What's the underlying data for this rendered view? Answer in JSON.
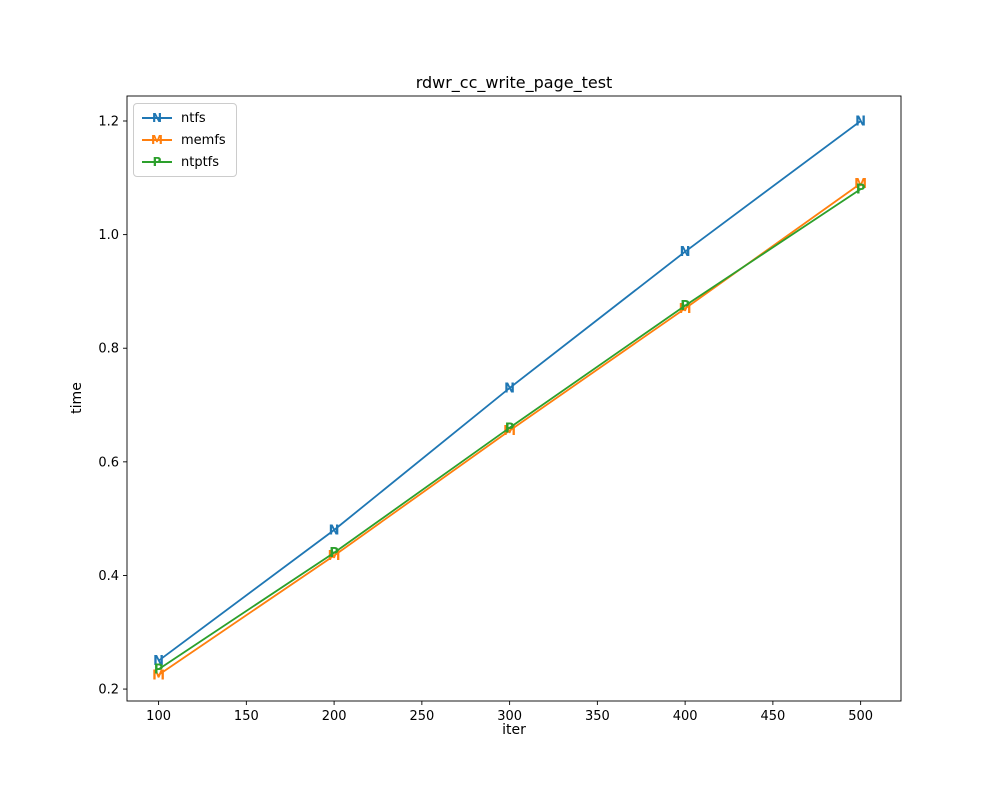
{
  "chart_data": {
    "type": "line",
    "title": "rdwr_cc_write_page_test",
    "xlabel": "iter",
    "ylabel": "time",
    "x": [
      100,
      200,
      300,
      400,
      500
    ],
    "series": [
      {
        "name": "ntfs",
        "marker": "N",
        "color": "#1f77b4",
        "values": [
          0.25,
          0.48,
          0.73,
          0.97,
          1.2
        ]
      },
      {
        "name": "memfs",
        "marker": "M",
        "color": "#ff7f0e",
        "values": [
          0.225,
          0.435,
          0.655,
          0.87,
          1.09
        ]
      },
      {
        "name": "ntptfs",
        "marker": "P",
        "color": "#2ca02c",
        "values": [
          0.235,
          0.44,
          0.66,
          0.875,
          1.08
        ]
      }
    ],
    "xtick_values": [
      100,
      150,
      200,
      250,
      300,
      350,
      400,
      450,
      500
    ],
    "xtick_labels": [
      "100",
      "150",
      "200",
      "250",
      "300",
      "350",
      "400",
      "450",
      "500"
    ],
    "ytick_values": [
      0.2,
      0.4,
      0.6,
      0.8,
      1.0,
      1.2
    ],
    "ytick_labels": [
      "0.2",
      "0.4",
      "0.6",
      "0.8",
      "1.0",
      "1.2"
    ],
    "xlim": [
      82,
      523
    ],
    "ylim": [
      0.179,
      1.244
    ],
    "grid": false,
    "legend_position": "upper left",
    "axis_color": "#000000",
    "background": "#ffffff"
  }
}
